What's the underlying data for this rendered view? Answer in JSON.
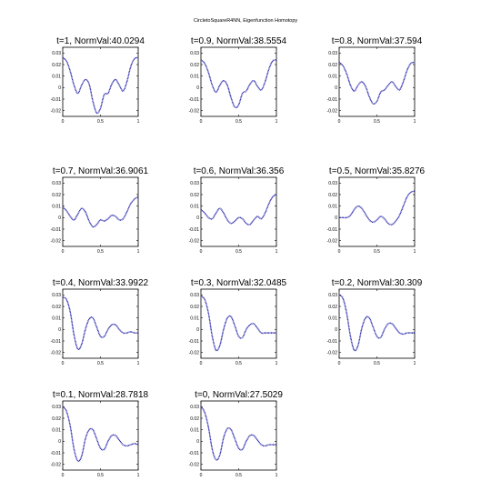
{
  "figure": {
    "title": "CircletoSquareR4NN, Eigenfunction Homotopy"
  },
  "chart_data": [
    {
      "type": "line",
      "title": "t=1, NormVal:40.0294",
      "xlim": [
        0,
        1
      ],
      "ylim": [
        -0.025,
        0.035
      ],
      "xticks": [
        "0",
        "0.5",
        "1"
      ],
      "yticks": [
        "0.03",
        "0.02",
        "0.01",
        "0",
        "-0.01",
        "-0.02"
      ],
      "x": [
        0,
        0.05,
        0.1,
        0.15,
        0.2,
        0.25,
        0.3,
        0.35,
        0.4,
        0.45,
        0.5,
        0.55,
        0.6,
        0.65,
        0.7,
        0.75,
        0.8,
        0.85,
        0.9,
        0.95,
        1
      ],
      "y": [
        0.026,
        0.023,
        0.014,
        0.002,
        -0.005,
        0.002,
        0.007,
        0.003,
        -0.012,
        -0.022,
        -0.018,
        -0.006,
        -0.005,
        0.003,
        0.007,
        0.002,
        -0.003,
        0.005,
        0.018,
        0.025,
        0.026
      ]
    },
    {
      "type": "line",
      "title": "t=0.9, NormVal:38.5554",
      "xlim": [
        0,
        1
      ],
      "ylim": [
        -0.025,
        0.035
      ],
      "xticks": [
        "0",
        "0.5",
        "1"
      ],
      "yticks": [
        "0.03",
        "0.02",
        "0.01",
        "0",
        "-0.01",
        "-0.02"
      ],
      "x": [
        0,
        0.05,
        0.1,
        0.15,
        0.2,
        0.25,
        0.3,
        0.35,
        0.4,
        0.45,
        0.5,
        0.55,
        0.6,
        0.65,
        0.7,
        0.75,
        0.8,
        0.85,
        0.9,
        0.95,
        1
      ],
      "y": [
        0.024,
        0.021,
        0.013,
        0.002,
        -0.004,
        0.002,
        0.006,
        0.002,
        -0.009,
        -0.017,
        -0.015,
        -0.005,
        -0.003,
        0.003,
        0.006,
        0.001,
        -0.002,
        0.005,
        0.016,
        0.023,
        0.024
      ]
    },
    {
      "type": "line",
      "title": "t=0.8, NormVal:37.594",
      "xlim": [
        0,
        1
      ],
      "ylim": [
        -0.025,
        0.035
      ],
      "xticks": [
        "0",
        "0.5",
        "1"
      ],
      "yticks": [
        "0.03",
        "0.02",
        "0.01",
        "0",
        "-0.01",
        "-0.02"
      ],
      "x": [
        0,
        0.05,
        0.1,
        0.15,
        0.2,
        0.25,
        0.3,
        0.35,
        0.4,
        0.45,
        0.5,
        0.55,
        0.6,
        0.65,
        0.7,
        0.75,
        0.8,
        0.85,
        0.9,
        0.95,
        1
      ],
      "y": [
        0.022,
        0.019,
        0.012,
        0.002,
        -0.003,
        0.002,
        0.005,
        0.001,
        -0.008,
        -0.014,
        -0.012,
        -0.004,
        -0.002,
        0.002,
        0.005,
        0.001,
        -0.002,
        0.005,
        0.015,
        0.021,
        0.022
      ]
    },
    {
      "type": "line",
      "title": "t=0.7, NormVal:36.9061",
      "xlim": [
        0,
        1
      ],
      "ylim": [
        -0.025,
        0.035
      ],
      "xticks": [
        "0",
        "0.5",
        "1"
      ],
      "yticks": [
        "0.03",
        "0.02",
        "0.01",
        "0",
        "-0.01",
        "-0.02"
      ],
      "x": [
        0,
        0.05,
        0.1,
        0.15,
        0.2,
        0.25,
        0.3,
        0.35,
        0.4,
        0.45,
        0.5,
        0.55,
        0.6,
        0.65,
        0.7,
        0.75,
        0.8,
        0.85,
        0.9,
        0.95,
        1
      ],
      "y": [
        0.009,
        0.006,
        0.001,
        -0.002,
        0.003,
        0.008,
        0.005,
        -0.003,
        -0.008,
        -0.006,
        -0.002,
        -0.003,
        -0.001,
        0.002,
        0.001,
        -0.002,
        -0.001,
        0.005,
        0.012,
        0.016,
        0.018
      ]
    },
    {
      "type": "line",
      "title": "t=0.6, NormVal:36.356",
      "xlim": [
        0,
        1
      ],
      "ylim": [
        -0.025,
        0.035
      ],
      "xticks": [
        "0",
        "0.5",
        "1"
      ],
      "yticks": [
        "0.03",
        "0.02",
        "0.01",
        "0",
        "-0.01",
        "-0.02"
      ],
      "x": [
        0,
        0.05,
        0.1,
        0.15,
        0.2,
        0.25,
        0.3,
        0.35,
        0.4,
        0.45,
        0.5,
        0.55,
        0.6,
        0.65,
        0.7,
        0.75,
        0.8,
        0.85,
        0.9,
        0.95,
        1
      ],
      "y": [
        0.007,
        0.004,
        0.0,
        -0.001,
        0.004,
        0.008,
        0.004,
        -0.002,
        -0.005,
        -0.003,
        0.0,
        -0.001,
        -0.005,
        -0.006,
        -0.002,
        0.001,
        -0.001,
        0.004,
        0.012,
        0.018,
        0.02
      ]
    },
    {
      "type": "line",
      "title": "t=0.5, NormVal:35.8276",
      "xlim": [
        0,
        1
      ],
      "ylim": [
        -0.025,
        0.035
      ],
      "xticks": [
        "0",
        "0.5",
        "1"
      ],
      "yticks": [
        "0.03",
        "0.02",
        "0.01",
        "0",
        "-0.01",
        "-0.02"
      ],
      "x": [
        0,
        0.05,
        0.1,
        0.15,
        0.2,
        0.25,
        0.3,
        0.35,
        0.4,
        0.45,
        0.5,
        0.55,
        0.6,
        0.65,
        0.7,
        0.75,
        0.8,
        0.85,
        0.9,
        0.95,
        1
      ],
      "y": [
        0.0,
        0.0,
        0.0,
        0.002,
        0.007,
        0.01,
        0.008,
        0.003,
        -0.002,
        -0.004,
        -0.002,
        0.001,
        -0.001,
        -0.005,
        -0.006,
        -0.003,
        0.002,
        0.01,
        0.018,
        0.022,
        0.023
      ]
    },
    {
      "type": "line",
      "title": "t=0.4, NormVal:33.9922",
      "xlim": [
        0,
        1
      ],
      "ylim": [
        -0.025,
        0.035
      ],
      "xticks": [
        "0",
        "0.5",
        "1"
      ],
      "yticks": [
        "0.03",
        "0.02",
        "0.01",
        "0",
        "-0.01",
        "-0.02"
      ],
      "x": [
        0,
        0.05,
        0.1,
        0.15,
        0.2,
        0.25,
        0.3,
        0.35,
        0.4,
        0.45,
        0.5,
        0.55,
        0.6,
        0.65,
        0.7,
        0.75,
        0.8,
        0.85,
        0.9,
        0.95,
        1
      ],
      "y": [
        0.028,
        0.026,
        0.015,
        -0.005,
        -0.017,
        -0.013,
        0.0,
        0.009,
        0.01,
        0.002,
        -0.006,
        -0.006,
        0.0,
        0.004,
        0.004,
        0.0,
        -0.003,
        -0.003,
        -0.002,
        -0.003,
        -0.003
      ]
    },
    {
      "type": "line",
      "title": "t=0.3, NormVal:32.0485",
      "xlim": [
        0,
        1
      ],
      "ylim": [
        -0.025,
        0.035
      ],
      "xticks": [
        "0",
        "0.5",
        "1"
      ],
      "yticks": [
        "0.03",
        "0.02",
        "0.01",
        "0",
        "-0.01",
        "-0.02"
      ],
      "x": [
        0,
        0.05,
        0.1,
        0.15,
        0.2,
        0.25,
        0.3,
        0.35,
        0.4,
        0.45,
        0.5,
        0.55,
        0.6,
        0.65,
        0.7,
        0.75,
        0.8,
        0.85,
        0.9,
        0.95,
        1
      ],
      "y": [
        0.029,
        0.026,
        0.014,
        -0.006,
        -0.018,
        -0.014,
        0.0,
        0.01,
        0.011,
        0.003,
        -0.006,
        -0.007,
        0.0,
        0.004,
        0.005,
        0.001,
        -0.003,
        -0.003,
        -0.003,
        -0.003,
        -0.003
      ]
    },
    {
      "type": "line",
      "title": "t=0.2, NormVal:30.309",
      "xlim": [
        0,
        1
      ],
      "ylim": [
        -0.025,
        0.035
      ],
      "xticks": [
        "0",
        "0.5",
        "1"
      ],
      "yticks": [
        "0.03",
        "0.02",
        "0.01",
        "0",
        "-0.01",
        "-0.02"
      ],
      "x": [
        0,
        0.05,
        0.1,
        0.15,
        0.2,
        0.25,
        0.3,
        0.35,
        0.4,
        0.45,
        0.5,
        0.55,
        0.6,
        0.65,
        0.7,
        0.75,
        0.8,
        0.85,
        0.9,
        0.95,
        1
      ],
      "y": [
        0.03,
        0.027,
        0.014,
        -0.006,
        -0.018,
        -0.014,
        0.001,
        0.01,
        0.01,
        0.002,
        -0.006,
        -0.007,
        0.0,
        0.005,
        0.005,
        0.001,
        -0.003,
        -0.004,
        -0.003,
        -0.003,
        -0.003
      ]
    },
    {
      "type": "line",
      "title": "t=0.1, NormVal:28.7818",
      "xlim": [
        0,
        1
      ],
      "ylim": [
        -0.025,
        0.035
      ],
      "xticks": [
        "0",
        "0.5",
        "1"
      ],
      "yticks": [
        "0.03",
        "0.02",
        "0.01",
        "0",
        "-0.01",
        "-0.02"
      ],
      "x": [
        0,
        0.05,
        0.1,
        0.15,
        0.2,
        0.25,
        0.3,
        0.35,
        0.4,
        0.45,
        0.5,
        0.55,
        0.6,
        0.65,
        0.7,
        0.75,
        0.8,
        0.85,
        0.9,
        0.95,
        1
      ],
      "y": [
        0.03,
        0.026,
        0.013,
        -0.007,
        -0.017,
        -0.013,
        0.002,
        0.01,
        0.01,
        0.002,
        -0.006,
        -0.007,
        0.0,
        0.005,
        0.005,
        0.001,
        -0.003,
        -0.004,
        -0.003,
        -0.002,
        -0.003
      ]
    },
    {
      "type": "line",
      "title": "t=0, NormVal:27.5029",
      "xlim": [
        0,
        1
      ],
      "ylim": [
        -0.025,
        0.035
      ],
      "xticks": [
        "0",
        "0.5",
        "1"
      ],
      "yticks": [
        "0.03",
        "0.02",
        "0.01",
        "0",
        "-0.01",
        "-0.02"
      ],
      "x": [
        0,
        0.05,
        0.1,
        0.15,
        0.2,
        0.25,
        0.3,
        0.35,
        0.4,
        0.45,
        0.5,
        0.55,
        0.6,
        0.65,
        0.7,
        0.75,
        0.8,
        0.85,
        0.9,
        0.95,
        1
      ],
      "y": [
        0.03,
        0.025,
        0.012,
        -0.007,
        -0.016,
        -0.012,
        0.003,
        0.011,
        0.01,
        0.002,
        -0.006,
        -0.007,
        0.0,
        0.005,
        0.005,
        0.001,
        -0.003,
        -0.004,
        -0.003,
        -0.003,
        -0.003
      ]
    }
  ]
}
